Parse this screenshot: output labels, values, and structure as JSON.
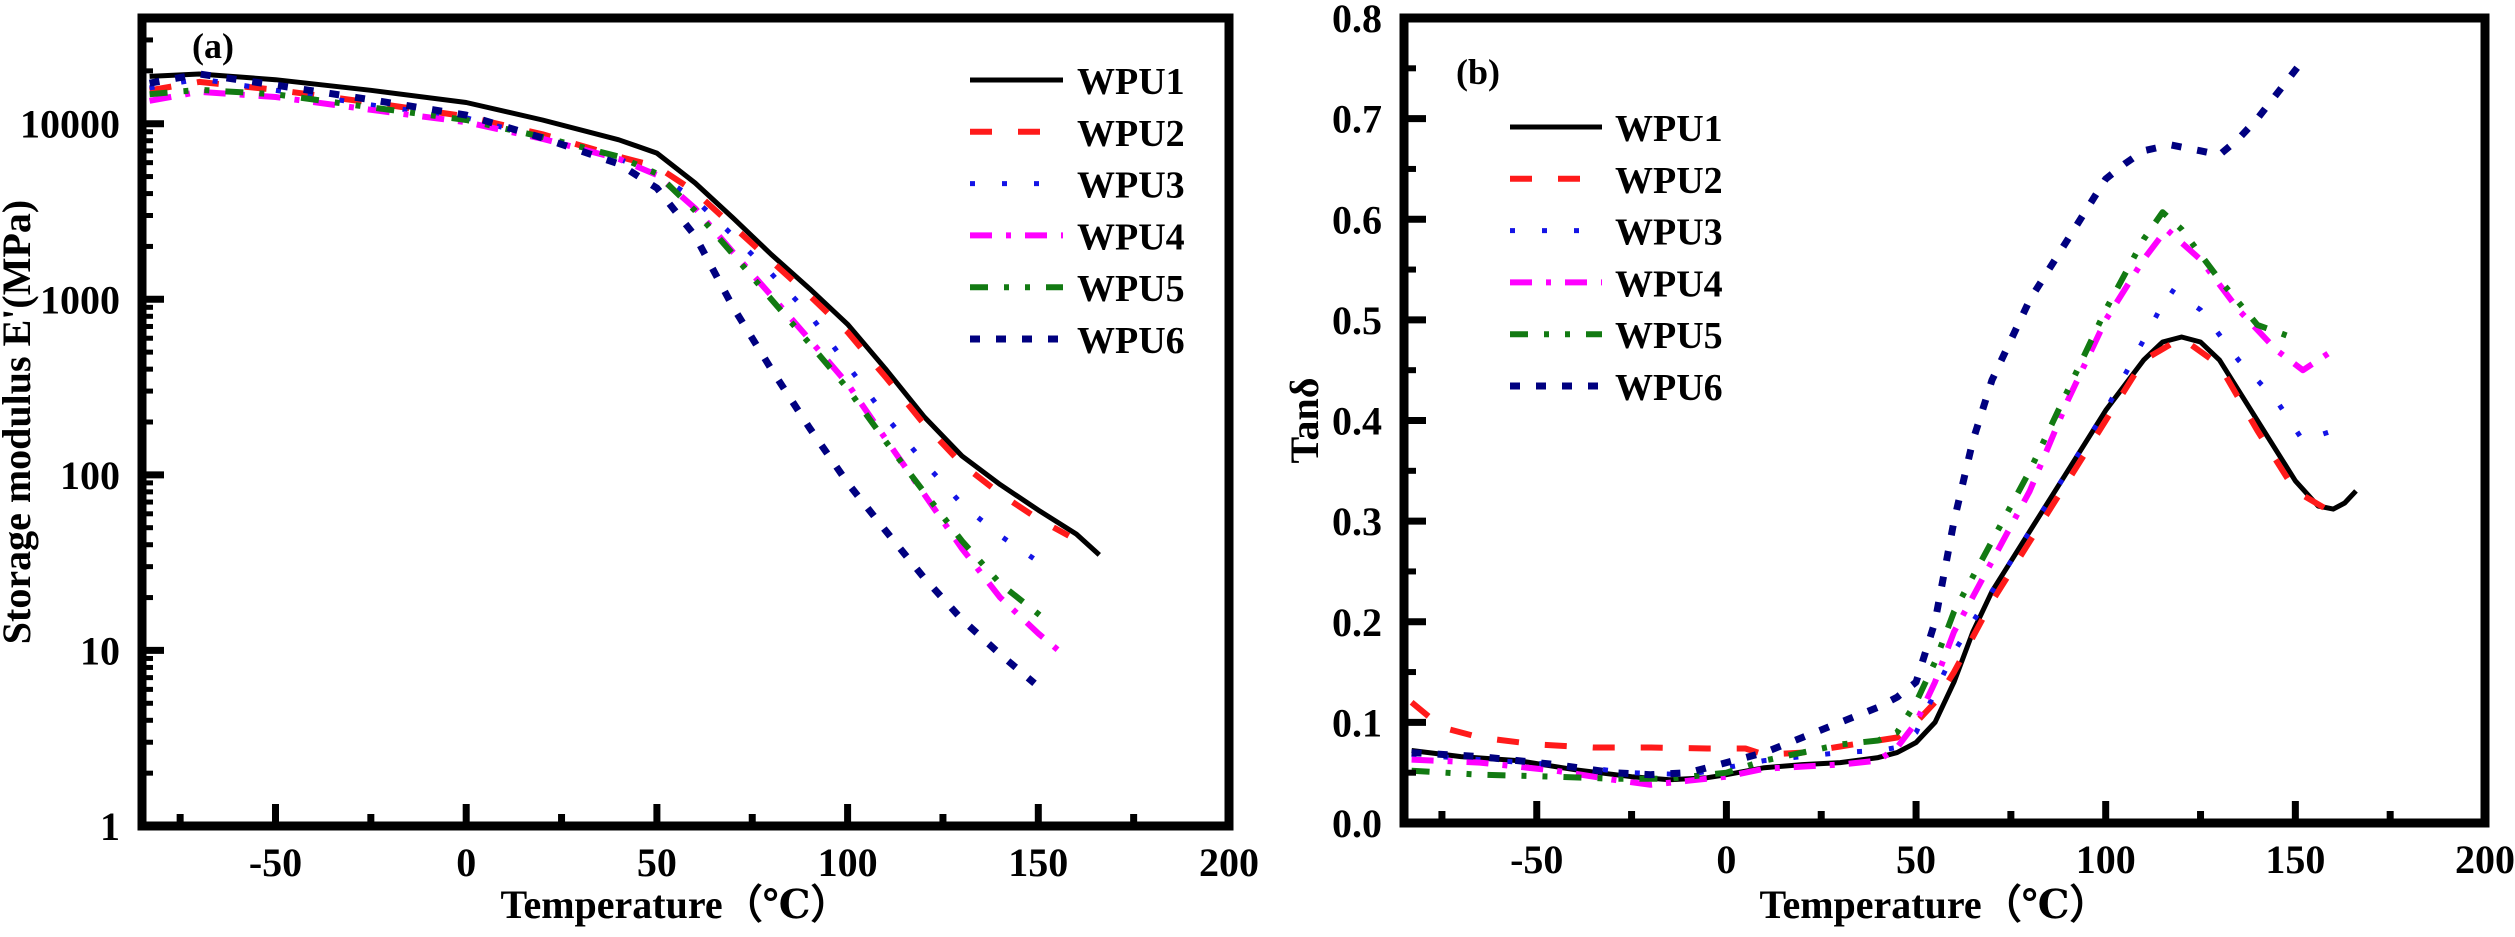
{
  "chart_data": [
    {
      "type": "line",
      "panel_label": "(a)",
      "title": "",
      "xlabel": "Temperature（℃）",
      "ylabel": "Storage modulus E'(MPa)",
      "xscale": "linear",
      "yscale": "log",
      "xlim": [
        -85,
        200
      ],
      "ylim": [
        1,
        40000
      ],
      "xticks": [
        -50,
        0,
        50,
        100,
        150,
        200
      ],
      "xtick_labels": [
        "-50",
        "0",
        "50",
        "100",
        "150",
        "200"
      ],
      "yticks": [
        1,
        10,
        100,
        1000,
        10000
      ],
      "ytick_labels": [
        "1",
        "10",
        "100",
        "1000",
        "10000"
      ],
      "grid": false,
      "legend_position": "top-right",
      "series": [
        {
          "name": "WPU1",
          "color": "#000000",
          "dash": "solid",
          "x": [
            -83,
            -70,
            -50,
            -25,
            0,
            20,
            40,
            50,
            60,
            70,
            80,
            90,
            100,
            110,
            120,
            130,
            140,
            150,
            160,
            166
          ],
          "y": [
            18600,
            19200,
            17800,
            15500,
            13200,
            10500,
            8100,
            6800,
            4600,
            2900,
            1800,
            1150,
            720,
            400,
            215,
            128,
            88,
            63,
            46,
            35
          ]
        },
        {
          "name": "WPU2",
          "color": "#ff1a1a",
          "dash": "dash",
          "x": [
            -83,
            -70,
            -50,
            -25,
            0,
            20,
            40,
            50,
            60,
            70,
            80,
            90,
            100,
            110,
            120,
            130,
            140,
            150,
            158
          ],
          "y": [
            15500,
            17300,
            15600,
            13200,
            11000,
            8700,
            6500,
            5700,
            4100,
            2600,
            1650,
            1050,
            650,
            360,
            195,
            115,
            78,
            56,
            45
          ]
        },
        {
          "name": "WPU3",
          "color": "#1414e6",
          "dash": "dot",
          "x": [
            -83,
            -70,
            -50,
            -25,
            0,
            20,
            40,
            50,
            60,
            70,
            80,
            90,
            100,
            110,
            120,
            130,
            140,
            150,
            154
          ],
          "y": [
            16000,
            18000,
            15500,
            12800,
            10800,
            8300,
            6300,
            5200,
            3700,
            2300,
            1400,
            820,
            420,
            215,
            118,
            68,
            45,
            32,
            27
          ]
        },
        {
          "name": "WPU4",
          "color": "#ff00ff",
          "dash": "dashdot",
          "x": [
            -83,
            -70,
            -50,
            -25,
            0,
            20,
            40,
            50,
            60,
            70,
            80,
            90,
            100,
            110,
            120,
            130,
            140,
            150,
            157
          ],
          "y": [
            13500,
            15200,
            14200,
            12000,
            10200,
            8200,
            6300,
            5100,
            3300,
            1850,
            1050,
            590,
            330,
            160,
            78,
            38,
            20,
            12.5,
            9.3
          ]
        },
        {
          "name": "WPU5",
          "color": "#127a12",
          "dash": "dashdotdot",
          "x": [
            -83,
            -70,
            -50,
            -25,
            0,
            20,
            40,
            50,
            60,
            70,
            80,
            90,
            100,
            110,
            120,
            130,
            140,
            151
          ],
          "y": [
            14700,
            15600,
            14700,
            12400,
            10500,
            8400,
            6500,
            5200,
            3200,
            1800,
            1000,
            560,
            310,
            155,
            80,
            42,
            24,
            15.5
          ]
        },
        {
          "name": "WPU6",
          "color": "#000080",
          "dash": "shortdash",
          "x": [
            -83,
            -70,
            -50,
            -25,
            0,
            20,
            40,
            50,
            60,
            70,
            80,
            90,
            100,
            110,
            120,
            130,
            140,
            149
          ],
          "y": [
            17000,
            19200,
            16600,
            13700,
            11200,
            8300,
            5900,
            4300,
            2300,
            900,
            400,
            185,
            90,
            48,
            26,
            15,
            9.5,
            6.5
          ]
        }
      ]
    },
    {
      "type": "line",
      "panel_label": "(b)",
      "title": "",
      "xlabel": "Temperature（℃）",
      "ylabel": "Tanδ",
      "xscale": "linear",
      "yscale": "linear",
      "xlim": [
        -85,
        200
      ],
      "ylim": [
        0.0,
        0.8
      ],
      "xticks": [
        -50,
        0,
        50,
        100,
        150,
        200
      ],
      "xtick_labels": [
        "-50",
        "0",
        "50",
        "100",
        "150",
        "200"
      ],
      "yticks": [
        0.0,
        0.1,
        0.2,
        0.3,
        0.4,
        0.5,
        0.6,
        0.7,
        0.8
      ],
      "ytick_labels": [
        "0.0",
        "0.1",
        "0.2",
        "0.3",
        "0.4",
        "0.5",
        "0.6",
        "0.7",
        "0.8"
      ],
      "grid": false,
      "legend_position": "top-left",
      "series": [
        {
          "name": "WPU1",
          "color": "#000000",
          "dash": "solid",
          "x": [
            -83,
            -70,
            -55,
            -40,
            -25,
            -15,
            -5,
            0,
            10,
            20,
            30,
            40,
            45,
            50,
            55,
            60,
            65,
            70,
            80,
            90,
            100,
            110,
            115,
            120,
            125,
            130,
            140,
            150,
            156,
            160,
            163,
            166
          ],
          "y": [
            0.072,
            0.066,
            0.062,
            0.053,
            0.046,
            0.043,
            0.045,
            0.048,
            0.055,
            0.058,
            0.06,
            0.065,
            0.07,
            0.08,
            0.1,
            0.14,
            0.19,
            0.23,
            0.29,
            0.35,
            0.41,
            0.46,
            0.478,
            0.483,
            0.478,
            0.46,
            0.4,
            0.34,
            0.315,
            0.312,
            0.318,
            0.33
          ]
        },
        {
          "name": "WPU2",
          "color": "#ff1a1a",
          "dash": "dash",
          "x": [
            -83,
            -75,
            -65,
            -50,
            -35,
            -20,
            -5,
            5,
            10,
            20,
            30,
            40,
            45,
            50,
            55,
            60,
            70,
            80,
            90,
            100,
            110,
            120,
            130,
            140,
            150,
            160
          ],
          "y": [
            0.12,
            0.095,
            0.085,
            0.078,
            0.075,
            0.075,
            0.074,
            0.074,
            0.068,
            0.07,
            0.076,
            0.082,
            0.085,
            0.1,
            0.12,
            0.15,
            0.22,
            0.28,
            0.34,
            0.4,
            0.46,
            0.482,
            0.455,
            0.39,
            0.33,
            0.308
          ]
        },
        {
          "name": "WPU3",
          "color": "#1414e6",
          "dash": "dot",
          "x": [
            -83,
            -65,
            -45,
            -25,
            -10,
            0,
            10,
            20,
            30,
            40,
            45,
            50,
            55,
            60,
            70,
            80,
            90,
            100,
            110,
            117,
            125,
            135,
            145,
            152,
            160
          ],
          "y": [
            0.068,
            0.063,
            0.058,
            0.05,
            0.048,
            0.055,
            0.062,
            0.066,
            0.07,
            0.072,
            0.075,
            0.09,
            0.13,
            0.17,
            0.23,
            0.29,
            0.35,
            0.41,
            0.48,
            0.53,
            0.51,
            0.46,
            0.42,
            0.38,
            0.39
          ]
        },
        {
          "name": "WPU4",
          "color": "#ff00ff",
          "dash": "dashdot",
          "x": [
            -83,
            -65,
            -45,
            -30,
            -20,
            -10,
            0,
            10,
            20,
            30,
            40,
            45,
            50,
            55,
            60,
            70,
            80,
            90,
            100,
            110,
            116,
            125,
            135,
            145,
            152,
            160
          ],
          "y": [
            0.063,
            0.06,
            0.052,
            0.043,
            0.038,
            0.042,
            0.046,
            0.054,
            0.056,
            0.058,
            0.062,
            0.075,
            0.1,
            0.14,
            0.19,
            0.26,
            0.33,
            0.42,
            0.5,
            0.56,
            0.59,
            0.56,
            0.51,
            0.47,
            0.45,
            0.47
          ]
        },
        {
          "name": "WPU5",
          "color": "#127a12",
          "dash": "dashdotdot",
          "x": [
            -83,
            -65,
            -45,
            -30,
            -15,
            0,
            10,
            20,
            30,
            40,
            45,
            50,
            55,
            60,
            70,
            80,
            90,
            100,
            110,
            115,
            120,
            130,
            140,
            151
          ],
          "y": [
            0.052,
            0.048,
            0.046,
            0.044,
            0.044,
            0.05,
            0.062,
            0.07,
            0.078,
            0.082,
            0.09,
            0.12,
            0.16,
            0.21,
            0.28,
            0.35,
            0.43,
            0.51,
            0.58,
            0.607,
            0.59,
            0.54,
            0.495,
            0.48
          ]
        },
        {
          "name": "WPU6",
          "color": "#000080",
          "dash": "shortdash",
          "x": [
            -83,
            -65,
            -45,
            -30,
            -20,
            -10,
            0,
            10,
            20,
            30,
            40,
            45,
            50,
            55,
            60,
            65,
            70,
            80,
            90,
            100,
            105,
            110,
            117,
            125,
            130,
            135,
            140,
            151
          ],
          "y": [
            0.07,
            0.066,
            0.058,
            0.05,
            0.048,
            0.05,
            0.06,
            0.07,
            0.085,
            0.1,
            0.115,
            0.125,
            0.14,
            0.2,
            0.3,
            0.38,
            0.44,
            0.52,
            0.58,
            0.64,
            0.655,
            0.668,
            0.674,
            0.668,
            0.664,
            0.68,
            0.7,
            0.753
          ]
        }
      ]
    }
  ]
}
